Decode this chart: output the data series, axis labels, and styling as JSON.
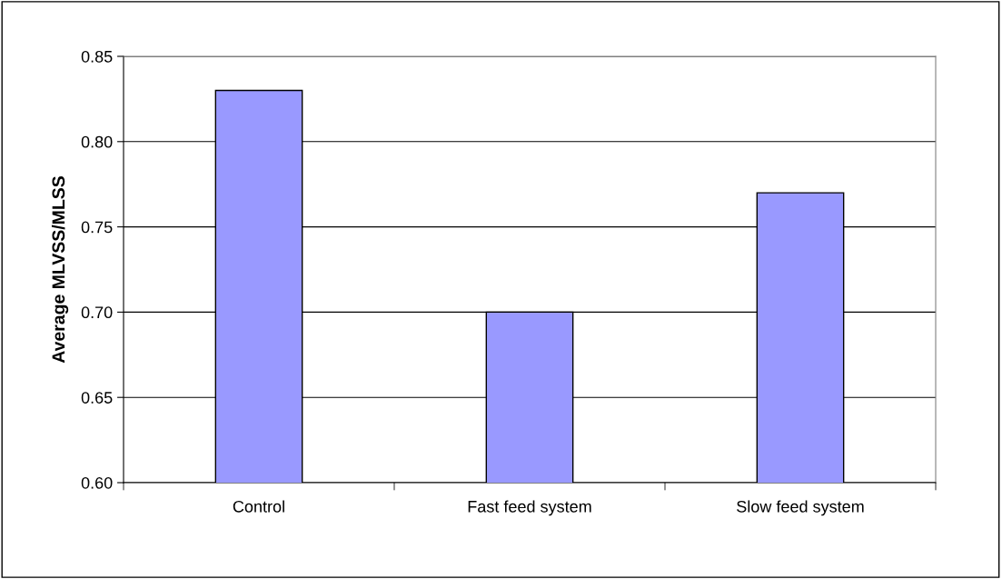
{
  "chart_data": {
    "type": "bar",
    "ylabel": "Average MLVSS/MLSS",
    "categories": [
      "Control",
      "Fast feed system",
      "Slow feed system"
    ],
    "values": [
      0.83,
      0.7,
      0.77
    ],
    "color": "#9999ff",
    "ylim": [
      0.6,
      0.85
    ],
    "yticks": [
      {
        "value": 0.6,
        "label": "0.60"
      },
      {
        "value": 0.65,
        "label": "0.65"
      },
      {
        "value": 0.7,
        "label": "0.70"
      },
      {
        "value": 0.75,
        "label": "0.75"
      },
      {
        "value": 0.8,
        "label": "0.80"
      },
      {
        "value": 0.85,
        "label": "0.85"
      }
    ],
    "grid": "y",
    "legend": false
  }
}
